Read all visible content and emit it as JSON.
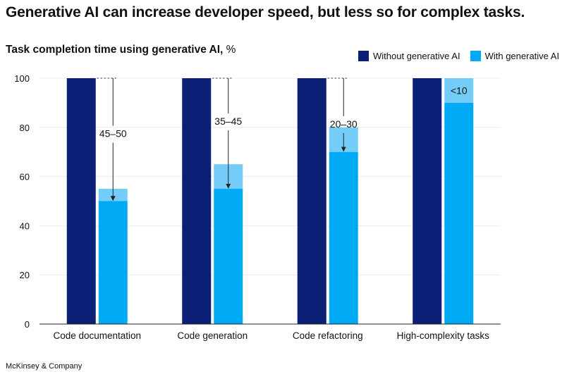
{
  "headline": "Generative AI can increase developer speed, but less so for complex tasks.",
  "footer": "McKinsey & Company",
  "colors": {
    "without": "#0b1f77",
    "with": "#00a9f4",
    "range": "#74cdf8",
    "grid": "#ececec",
    "axis": "#222222",
    "text": "#111111"
  },
  "chart_data": {
    "type": "bar",
    "title": "Task completion time using generative AI,",
    "title_unit": "%",
    "xlabel": "",
    "ylabel": "",
    "ylim": [
      0,
      100
    ],
    "yticks": [
      0,
      20,
      40,
      60,
      80,
      100
    ],
    "grid": true,
    "legend_position": "top-right",
    "categories": [
      "Code documentation",
      "Code generation",
      "Code refactoring",
      "High-complexity tasks"
    ],
    "series": [
      {
        "name": "Without generative AI",
        "values": [
          100,
          100,
          100,
          100
        ]
      },
      {
        "name": "With generative AI",
        "values": [
          50,
          55,
          70,
          90
        ],
        "range_upper": [
          55,
          65,
          80,
          100
        ]
      }
    ],
    "annotations": [
      "45–50",
      "35–45",
      "20–30",
      "<10"
    ]
  }
}
